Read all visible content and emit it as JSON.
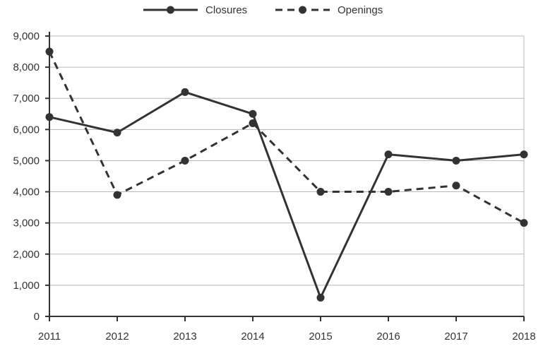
{
  "chart_data": {
    "type": "line",
    "categories": [
      "2011",
      "2012",
      "2013",
      "2014",
      "2015",
      "2016",
      "2017",
      "2018"
    ],
    "series": [
      {
        "name": "Closures",
        "values": [
          6400,
          5900,
          7200,
          6500,
          600,
          5200,
          5000,
          5200
        ],
        "dash": "solid"
      },
      {
        "name": "Openings",
        "values": [
          8500,
          3900,
          5000,
          6200,
          4000,
          4000,
          4200,
          3000
        ],
        "dash": "dashed"
      }
    ],
    "title": "",
    "xlabel": "",
    "ylabel": "",
    "ylim": [
      0,
      9000
    ],
    "yticks": [
      "0",
      "1,000",
      "2,000",
      "3,000",
      "4,000",
      "5,000",
      "6,000",
      "7,000",
      "8,000",
      "9,000"
    ],
    "ytick_values": [
      0,
      1000,
      2000,
      3000,
      4000,
      5000,
      6000,
      7000,
      8000,
      9000
    ],
    "grid": true,
    "legend_position": "top-center",
    "colors": {
      "line": "#333333",
      "grid": "#b8b8b8",
      "background": "#ffffff"
    }
  }
}
